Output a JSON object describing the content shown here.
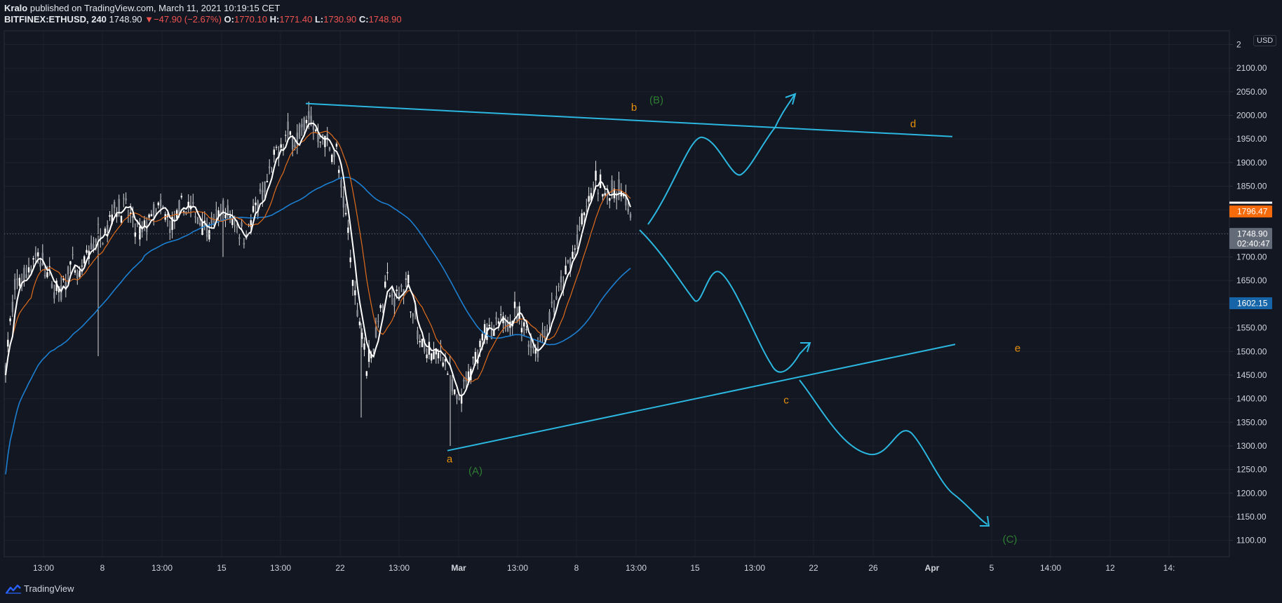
{
  "header": {
    "author": "Kralo",
    "published": "published on TradingView.com, March 11, 2021 10:19:15 CET"
  },
  "ohlc": {
    "symbol": "BITFINEX:ETHUSD, 240",
    "last": "1748.90",
    "change_arrow": "▼",
    "change": "−47.90 (−2.67%)",
    "o_label": "O:",
    "o": "1770.10",
    "h_label": "H:",
    "h": "1771.40",
    "l_label": "L:",
    "l": "1730.90",
    "c_label": "C:",
    "c": "1748.90"
  },
  "currency": "USD",
  "footer": {
    "brand": "TradingView"
  },
  "colors": {
    "background": "#131722",
    "grid": "#1e222d",
    "candle": "#d8d8d8",
    "ma_fast": "#ffffff",
    "ma_mid": "#e06c1c",
    "ma_slow": "#1c7fd1",
    "drawing": "#2bb7e0",
    "wave_orange": "#e8900c",
    "wave_green": "#2e7d32",
    "last_price": "#636b78",
    "badge_orange": "#f56a0a",
    "badge_blue": "#1565a8"
  },
  "chart_data": {
    "type": "candlestick",
    "title": "BITFINEX:ETHUSD, 240",
    "ylabel": "USD",
    "ylim": [
      1050,
      2170
    ],
    "y_ticks": [
      "1100.00",
      "1150.00",
      "1200.00",
      "1250.00",
      "1300.00",
      "1350.00",
      "1400.00",
      "1450.00",
      "1500.00",
      "1550.00",
      "1600.00",
      "1650.00",
      "1700.00",
      "1750.00",
      "1800.00",
      "1850.00",
      "1900.00",
      "1950.00",
      "2000.00",
      "2050.00",
      "2100.00",
      "2"
    ],
    "x_ticks": [
      "13:00",
      "8",
      "13:00",
      "15",
      "13:00",
      "22",
      "13:00",
      "Mar",
      "13:00",
      "8",
      "13:00",
      "15",
      "13:00",
      "22",
      "26",
      "Apr",
      "5",
      "14:00",
      "12",
      "14:"
    ],
    "price_badges": [
      {
        "value": "1796.47",
        "color": "orange"
      },
      {
        "value": "1748.90",
        "sub": "02:40:47",
        "color": "gray"
      },
      {
        "value": "1602.15",
        "color": "blue"
      }
    ],
    "wave_labels": [
      {
        "text": "a",
        "price": 1265,
        "color": "orange"
      },
      {
        "text": "(A)",
        "price": 1240,
        "color": "green"
      },
      {
        "text": "b",
        "price": 2010,
        "color": "orange"
      },
      {
        "text": "(B)",
        "price": 2025,
        "color": "green"
      },
      {
        "text": "c",
        "price": 1390,
        "color": "orange"
      },
      {
        "text": "d",
        "price": 1975,
        "color": "orange"
      },
      {
        "text": "e",
        "price": 1500,
        "color": "orange"
      },
      {
        "text": "(C)",
        "price": 1095,
        "color": "green"
      }
    ],
    "trendlines": [
      {
        "name": "upper",
        "from_price": 2025,
        "to_price": 1955
      },
      {
        "name": "lower",
        "from_price": 1290,
        "to_price": 1515
      }
    ]
  }
}
